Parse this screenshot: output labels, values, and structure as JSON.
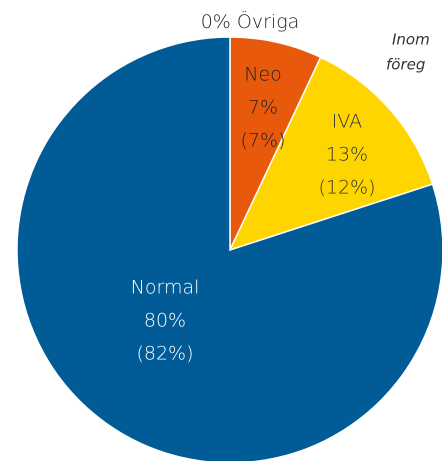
{
  "chart_data": {
    "type": "pie",
    "categories": [
      "Övriga",
      "Neo",
      "IVA",
      "Normal"
    ],
    "values": [
      0,
      7,
      13,
      80
    ],
    "value_labels": [
      "0%",
      "7%",
      "13%",
      "80%"
    ],
    "previous_values": [
      null,
      7,
      12,
      82
    ],
    "previous_labels": [
      null,
      "(7%)",
      "(12%)",
      "(82%)"
    ],
    "colors": [
      "#7f8c96",
      "#e8590c",
      "#ffd500",
      "#005b96"
    ],
    "annotation": [
      "Inom",
      "föreg"
    ]
  }
}
